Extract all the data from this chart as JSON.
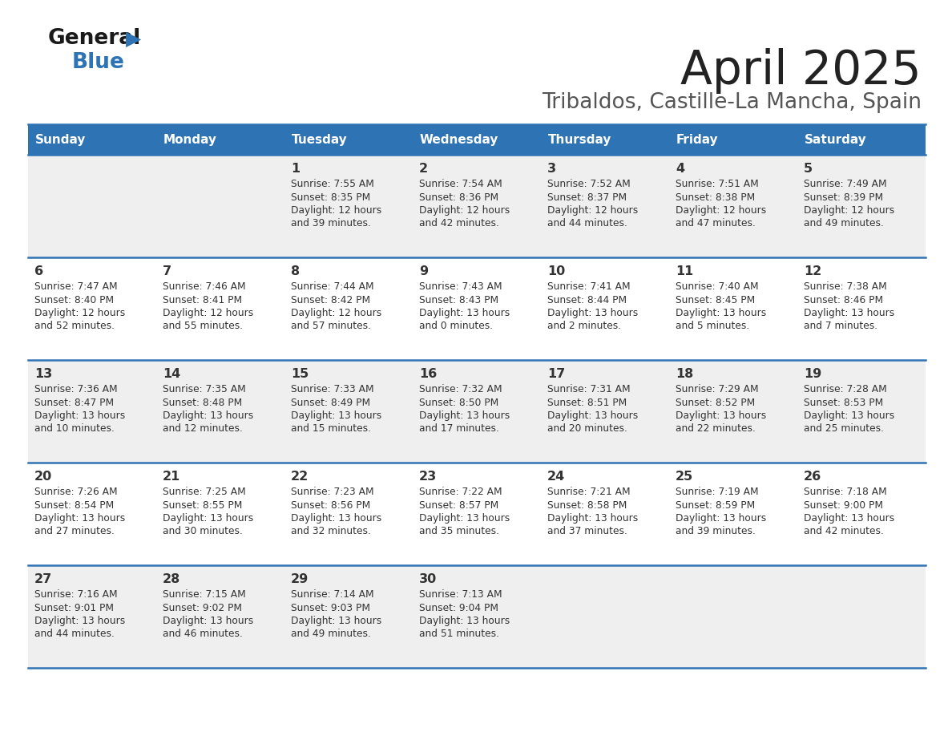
{
  "title": "April 2025",
  "subtitle": "Tribaldos, Castille-La Mancha, Spain",
  "days_of_week": [
    "Sunday",
    "Monday",
    "Tuesday",
    "Wednesday",
    "Thursday",
    "Friday",
    "Saturday"
  ],
  "header_bg": "#2E74B5",
  "header_text": "#FFFFFF",
  "row_bg_even": "#EFEFEF",
  "row_bg_odd": "#FFFFFF",
  "cell_text_color": "#333333",
  "border_color": "#2E74B5",
  "title_color": "#222222",
  "subtitle_color": "#555555",
  "logo_black": "#1a1a1a",
  "logo_blue": "#2E74B5",
  "calendar_data": [
    [
      {
        "day": "",
        "lines": []
      },
      {
        "day": "",
        "lines": []
      },
      {
        "day": "1",
        "lines": [
          "Sunrise: 7:55 AM",
          "Sunset: 8:35 PM",
          "Daylight: 12 hours",
          "and 39 minutes."
        ]
      },
      {
        "day": "2",
        "lines": [
          "Sunrise: 7:54 AM",
          "Sunset: 8:36 PM",
          "Daylight: 12 hours",
          "and 42 minutes."
        ]
      },
      {
        "day": "3",
        "lines": [
          "Sunrise: 7:52 AM",
          "Sunset: 8:37 PM",
          "Daylight: 12 hours",
          "and 44 minutes."
        ]
      },
      {
        "day": "4",
        "lines": [
          "Sunrise: 7:51 AM",
          "Sunset: 8:38 PM",
          "Daylight: 12 hours",
          "and 47 minutes."
        ]
      },
      {
        "day": "5",
        "lines": [
          "Sunrise: 7:49 AM",
          "Sunset: 8:39 PM",
          "Daylight: 12 hours",
          "and 49 minutes."
        ]
      }
    ],
    [
      {
        "day": "6",
        "lines": [
          "Sunrise: 7:47 AM",
          "Sunset: 8:40 PM",
          "Daylight: 12 hours",
          "and 52 minutes."
        ]
      },
      {
        "day": "7",
        "lines": [
          "Sunrise: 7:46 AM",
          "Sunset: 8:41 PM",
          "Daylight: 12 hours",
          "and 55 minutes."
        ]
      },
      {
        "day": "8",
        "lines": [
          "Sunrise: 7:44 AM",
          "Sunset: 8:42 PM",
          "Daylight: 12 hours",
          "and 57 minutes."
        ]
      },
      {
        "day": "9",
        "lines": [
          "Sunrise: 7:43 AM",
          "Sunset: 8:43 PM",
          "Daylight: 13 hours",
          "and 0 minutes."
        ]
      },
      {
        "day": "10",
        "lines": [
          "Sunrise: 7:41 AM",
          "Sunset: 8:44 PM",
          "Daylight: 13 hours",
          "and 2 minutes."
        ]
      },
      {
        "day": "11",
        "lines": [
          "Sunrise: 7:40 AM",
          "Sunset: 8:45 PM",
          "Daylight: 13 hours",
          "and 5 minutes."
        ]
      },
      {
        "day": "12",
        "lines": [
          "Sunrise: 7:38 AM",
          "Sunset: 8:46 PM",
          "Daylight: 13 hours",
          "and 7 minutes."
        ]
      }
    ],
    [
      {
        "day": "13",
        "lines": [
          "Sunrise: 7:36 AM",
          "Sunset: 8:47 PM",
          "Daylight: 13 hours",
          "and 10 minutes."
        ]
      },
      {
        "day": "14",
        "lines": [
          "Sunrise: 7:35 AM",
          "Sunset: 8:48 PM",
          "Daylight: 13 hours",
          "and 12 minutes."
        ]
      },
      {
        "day": "15",
        "lines": [
          "Sunrise: 7:33 AM",
          "Sunset: 8:49 PM",
          "Daylight: 13 hours",
          "and 15 minutes."
        ]
      },
      {
        "day": "16",
        "lines": [
          "Sunrise: 7:32 AM",
          "Sunset: 8:50 PM",
          "Daylight: 13 hours",
          "and 17 minutes."
        ]
      },
      {
        "day": "17",
        "lines": [
          "Sunrise: 7:31 AM",
          "Sunset: 8:51 PM",
          "Daylight: 13 hours",
          "and 20 minutes."
        ]
      },
      {
        "day": "18",
        "lines": [
          "Sunrise: 7:29 AM",
          "Sunset: 8:52 PM",
          "Daylight: 13 hours",
          "and 22 minutes."
        ]
      },
      {
        "day": "19",
        "lines": [
          "Sunrise: 7:28 AM",
          "Sunset: 8:53 PM",
          "Daylight: 13 hours",
          "and 25 minutes."
        ]
      }
    ],
    [
      {
        "day": "20",
        "lines": [
          "Sunrise: 7:26 AM",
          "Sunset: 8:54 PM",
          "Daylight: 13 hours",
          "and 27 minutes."
        ]
      },
      {
        "day": "21",
        "lines": [
          "Sunrise: 7:25 AM",
          "Sunset: 8:55 PM",
          "Daylight: 13 hours",
          "and 30 minutes."
        ]
      },
      {
        "day": "22",
        "lines": [
          "Sunrise: 7:23 AM",
          "Sunset: 8:56 PM",
          "Daylight: 13 hours",
          "and 32 minutes."
        ]
      },
      {
        "day": "23",
        "lines": [
          "Sunrise: 7:22 AM",
          "Sunset: 8:57 PM",
          "Daylight: 13 hours",
          "and 35 minutes."
        ]
      },
      {
        "day": "24",
        "lines": [
          "Sunrise: 7:21 AM",
          "Sunset: 8:58 PM",
          "Daylight: 13 hours",
          "and 37 minutes."
        ]
      },
      {
        "day": "25",
        "lines": [
          "Sunrise: 7:19 AM",
          "Sunset: 8:59 PM",
          "Daylight: 13 hours",
          "and 39 minutes."
        ]
      },
      {
        "day": "26",
        "lines": [
          "Sunrise: 7:18 AM",
          "Sunset: 9:00 PM",
          "Daylight: 13 hours",
          "and 42 minutes."
        ]
      }
    ],
    [
      {
        "day": "27",
        "lines": [
          "Sunrise: 7:16 AM",
          "Sunset: 9:01 PM",
          "Daylight: 13 hours",
          "and 44 minutes."
        ]
      },
      {
        "day": "28",
        "lines": [
          "Sunrise: 7:15 AM",
          "Sunset: 9:02 PM",
          "Daylight: 13 hours",
          "and 46 minutes."
        ]
      },
      {
        "day": "29",
        "lines": [
          "Sunrise: 7:14 AM",
          "Sunset: 9:03 PM",
          "Daylight: 13 hours",
          "and 49 minutes."
        ]
      },
      {
        "day": "30",
        "lines": [
          "Sunrise: 7:13 AM",
          "Sunset: 9:04 PM",
          "Daylight: 13 hours",
          "and 51 minutes."
        ]
      },
      {
        "day": "",
        "lines": []
      },
      {
        "day": "",
        "lines": []
      },
      {
        "day": "",
        "lines": []
      }
    ]
  ]
}
